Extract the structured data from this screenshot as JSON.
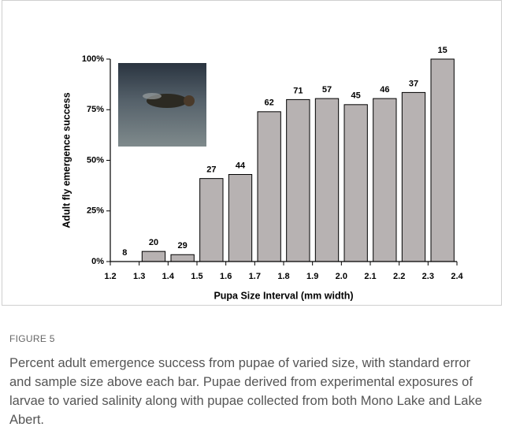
{
  "chart_data": {
    "type": "bar",
    "x": [
      1.25,
      1.35,
      1.45,
      1.55,
      1.65,
      1.75,
      1.85,
      1.95,
      2.05,
      2.15,
      2.25,
      2.35
    ],
    "values": [
      0,
      5,
      3.4,
      41,
      43,
      74,
      80,
      80.5,
      77.5,
      80.5,
      83.5,
      100
    ],
    "sample_sizes": [
      8,
      20,
      29,
      27,
      44,
      62,
      71,
      57,
      45,
      46,
      37,
      15
    ],
    "color": "#b7b2b2",
    "xlabel": "Pupa Size Interval (mm width)",
    "ylabel": "Adult fly emergence success",
    "xlim": [
      1.2,
      2.4
    ],
    "xticks": [
      1.2,
      1.3,
      1.4,
      1.5,
      1.6,
      1.7,
      1.8,
      1.9,
      {
        "value": 2,
        "label": "2.0"
      },
      2.1,
      2.2,
      2.3,
      2.4
    ],
    "ylim": [
      0,
      100
    ],
    "yticks": [
      {
        "value": 0,
        "label": "0%"
      },
      {
        "value": 25,
        "label": "25%"
      },
      {
        "value": 50,
        "label": "50%"
      },
      {
        "value": 75,
        "label": "75%"
      },
      {
        "value": 100,
        "label": "100%"
      }
    ]
  },
  "caption": {
    "label": "FIGURE 5",
    "text": "Percent adult emergence success from pupae of varied size, with standard error and sample size above each bar. Pupae derived from experimental exposures of larvae to varied salinity along with pupae collected from both Mono Lake and Lake Abert."
  }
}
